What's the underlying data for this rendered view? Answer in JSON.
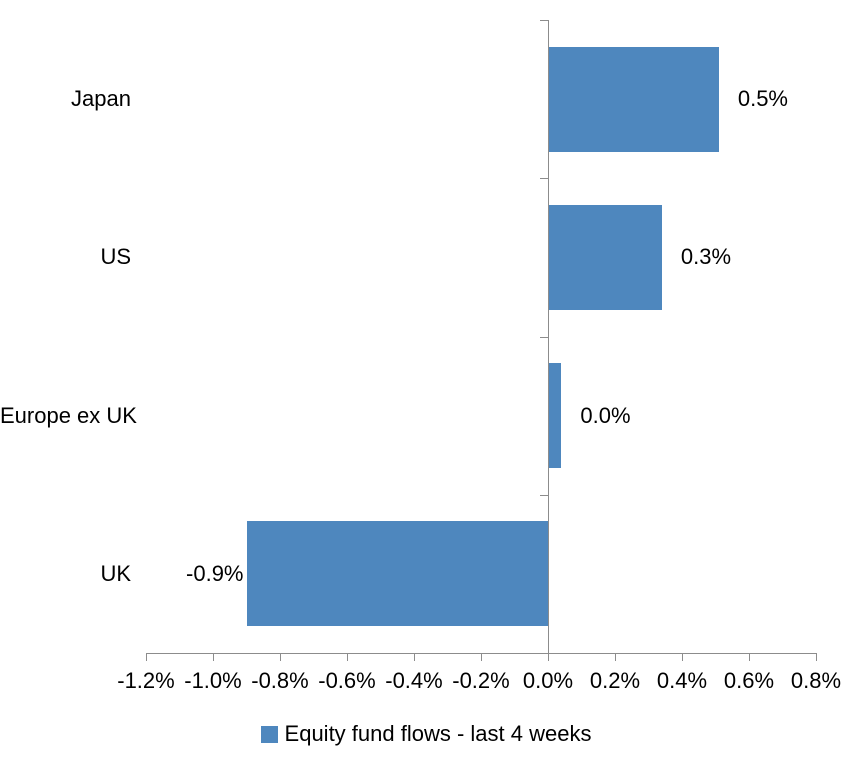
{
  "chart_data": {
    "type": "bar",
    "orientation": "horizontal",
    "title": "",
    "categories": [
      "Japan",
      "US",
      "Europe ex UK",
      "UK"
    ],
    "values": [
      0.51,
      0.34,
      0.04,
      -0.9
    ],
    "value_labels": [
      "0.5%",
      "0.3%",
      "0.0%",
      "-0.9%"
    ],
    "xlim": [
      -1.2,
      0.8
    ],
    "xticks": [
      -1.2,
      -1.0,
      -0.8,
      -0.6,
      -0.4,
      -0.2,
      0.0,
      0.2,
      0.4,
      0.6,
      0.8
    ],
    "xtick_labels": [
      "-1.2%",
      "-1.0%",
      "-0.8%",
      "-0.6%",
      "-0.4%",
      "-0.2%",
      "0.0%",
      "0.2%",
      "0.4%",
      "0.6%",
      "0.8%"
    ],
    "grid": false,
    "legend": {
      "position": "bottom",
      "entries": [
        "Equity fund flows - last 4 weeks"
      ]
    },
    "colors": {
      "bar": "#4E87BE",
      "axis": "#8C8C8C",
      "text": "#000000",
      "background": "#FFFFFF"
    }
  }
}
